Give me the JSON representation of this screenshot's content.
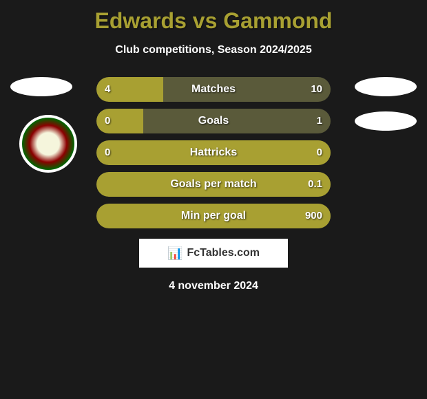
{
  "title": {
    "text": "Edwards vs Gammond",
    "color": "#a8a032",
    "fontsize": 32
  },
  "subtitle": {
    "text": "Club competitions, Season 2024/2025",
    "color": "#ffffff",
    "fontsize": 16
  },
  "background_color": "#1a1a1a",
  "stats": [
    {
      "label": "Matches",
      "left_value": "4",
      "right_value": "10",
      "fill_percent": 28.6,
      "fill_color": "#a8a032",
      "bg_color": "#5a5a3a"
    },
    {
      "label": "Goals",
      "left_value": "0",
      "right_value": "1",
      "fill_percent": 20,
      "fill_color": "#a8a032",
      "bg_color": "#5a5a3a"
    },
    {
      "label": "Hattricks",
      "left_value": "0",
      "right_value": "0",
      "fill_percent": 100,
      "fill_color": "#a8a032",
      "bg_color": "#5a5a3a"
    },
    {
      "label": "Goals per match",
      "left_value": "",
      "right_value": "0.1",
      "fill_percent": 100,
      "fill_color": "#a8a032",
      "bg_color": "#5a5a3a"
    },
    {
      "label": "Min per goal",
      "left_value": "",
      "right_value": "900",
      "fill_percent": 100,
      "fill_color": "#a8a032",
      "bg_color": "#5a5a3a"
    }
  ],
  "logo": {
    "icon": "📊",
    "text": "FcTables.com"
  },
  "date": "4 november 2024",
  "ellipses": {
    "color": "#ffffff"
  },
  "badge": {
    "outer_color": "#ffffff",
    "ring_green": "#006400",
    "ring_red": "#8b0000",
    "center": "#f5f5dc"
  }
}
